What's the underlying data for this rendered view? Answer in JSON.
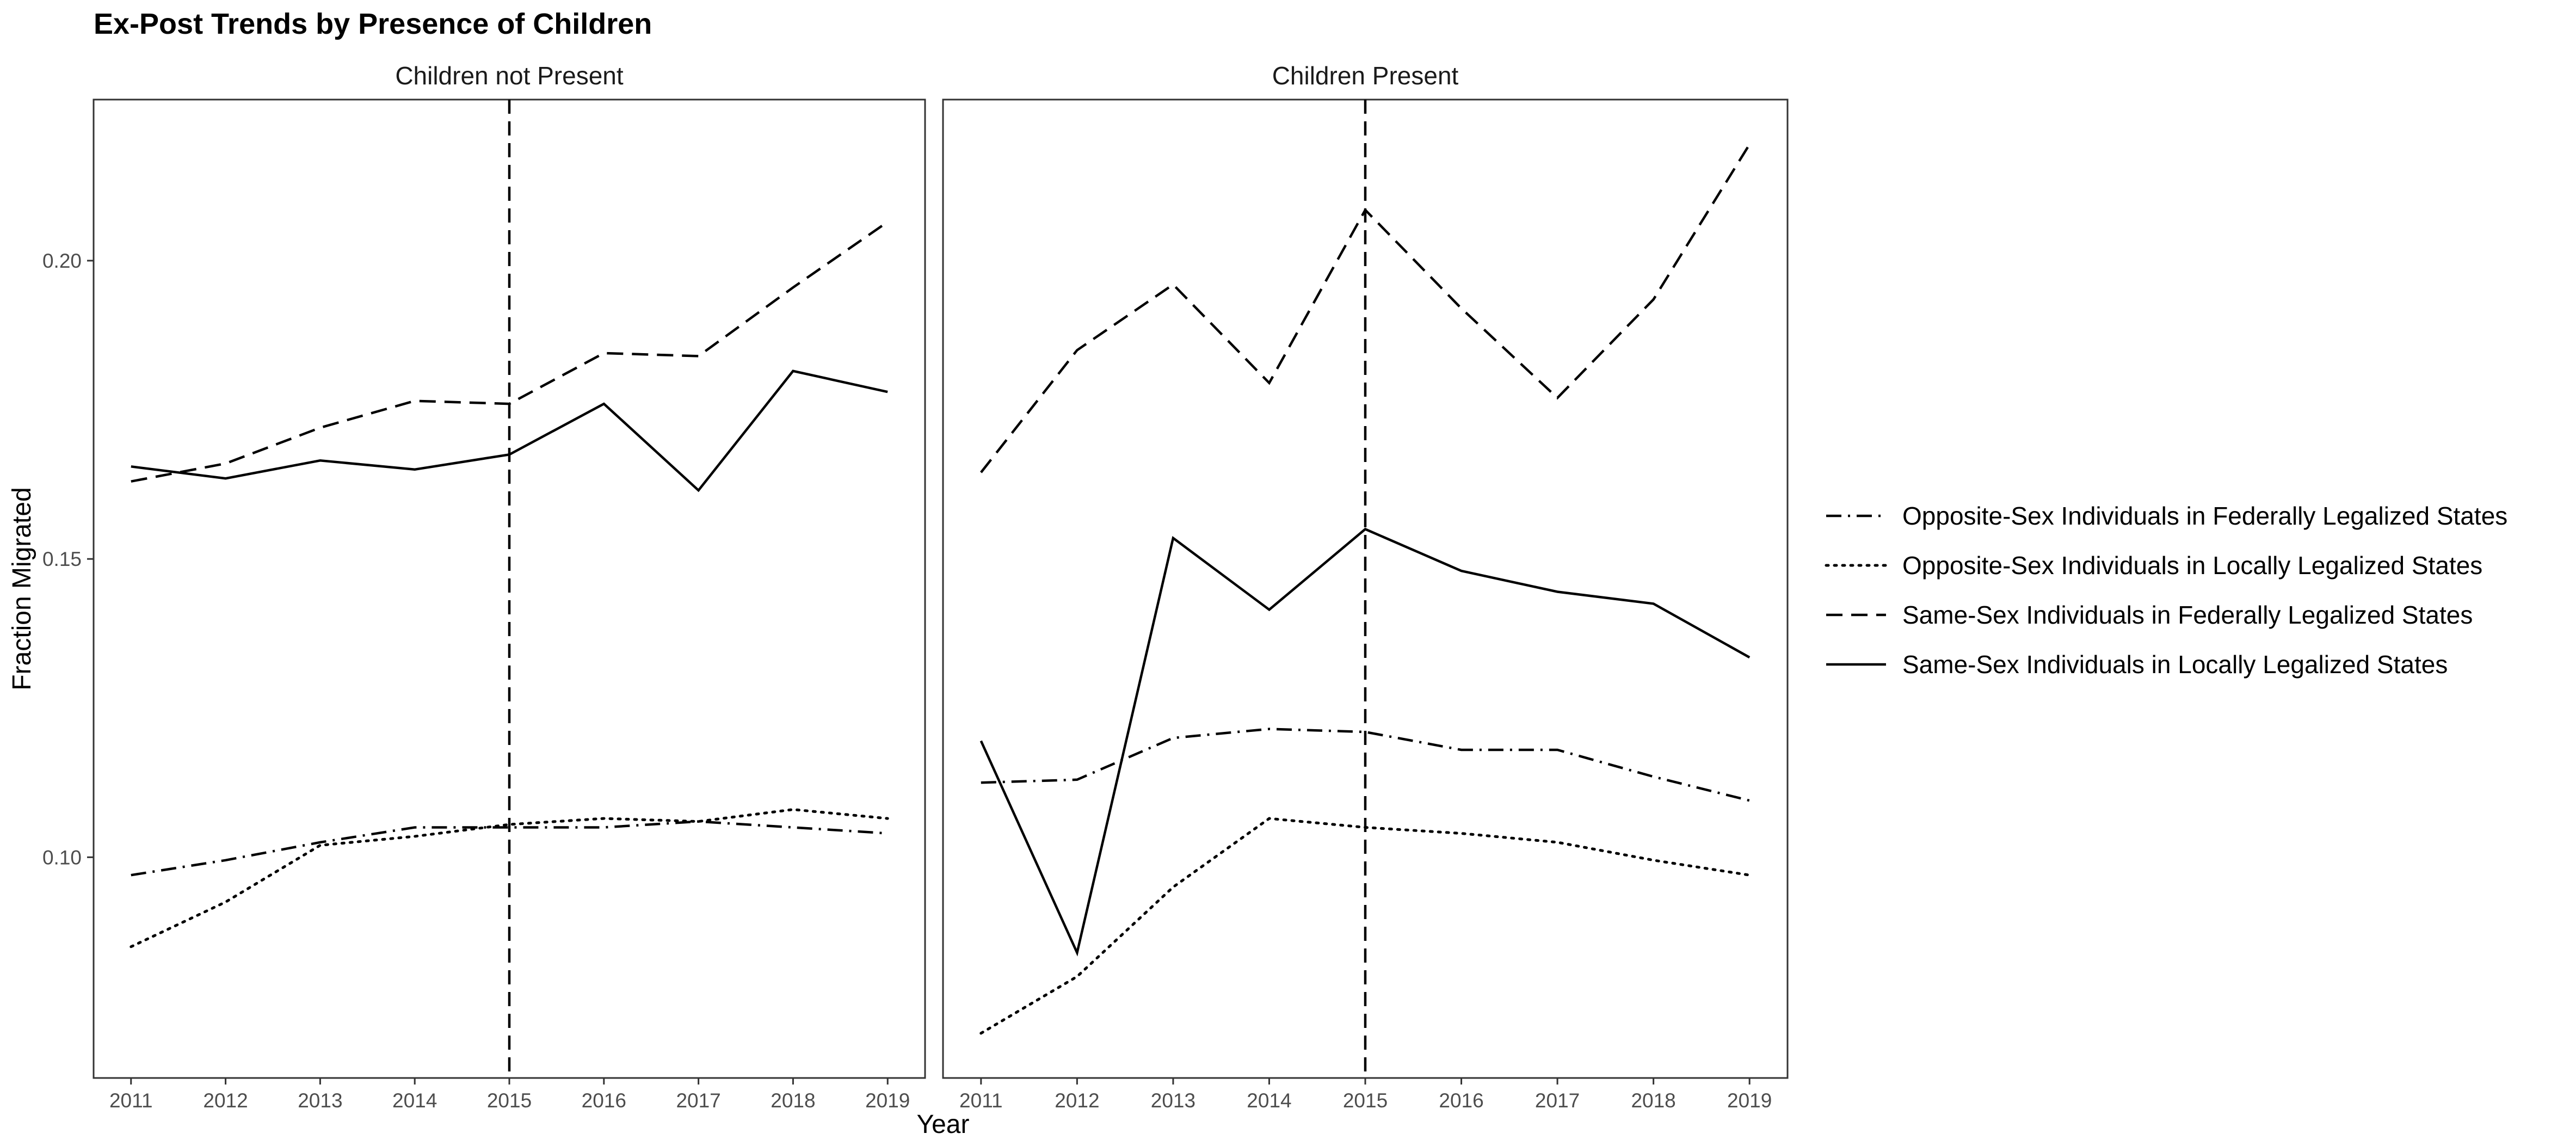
{
  "chart_data": {
    "type": "line",
    "title": "Ex-Post Trends by Presence of Children",
    "xlabel": "Year",
    "ylabel": "Fraction Migrated",
    "x": [
      2011,
      2012,
      2013,
      2014,
      2015,
      2016,
      2017,
      2018,
      2019
    ],
    "ylim": [
      0.063,
      0.227
    ],
    "yticks": [
      0.1,
      0.15,
      0.2
    ],
    "ytick_labels": [
      "0.10",
      "0.15",
      "0.20"
    ],
    "xticks": [
      "2011",
      "2012",
      "2013",
      "2014",
      "2015",
      "2016",
      "2017",
      "2018",
      "2019"
    ],
    "vline_x": 2015,
    "grid": false,
    "legend_position": "right",
    "legend": [
      {
        "name": "Opposite-Sex Individuals in Federally Legalized States",
        "style": "dashdot"
      },
      {
        "name": "Opposite-Sex Individuals in Locally Legalized States",
        "style": "dotted"
      },
      {
        "name": "Same-Sex Individuals in Federally Legalized States",
        "style": "dashed"
      },
      {
        "name": "Same-Sex Individuals in Locally Legalized States",
        "style": "solid"
      }
    ],
    "panels": [
      {
        "title": "Children not Present",
        "series": [
          {
            "name": "Opposite-Sex Individuals in Federally Legalized States",
            "style": "dashdot",
            "values": [
              0.097,
              0.0995,
              0.1025,
              0.105,
              0.105,
              0.105,
              0.106,
              0.105,
              0.104
            ]
          },
          {
            "name": "Opposite-Sex Individuals in Locally Legalized States",
            "style": "dotted",
            "values": [
              0.085,
              0.0925,
              0.102,
              0.1035,
              0.1055,
              0.1065,
              0.106,
              0.108,
              0.1065
            ]
          },
          {
            "name": "Same-Sex Individuals in Federally Legalized States",
            "style": "dashed",
            "values": [
              0.163,
              0.166,
              0.172,
              0.1765,
              0.176,
              0.1845,
              0.184,
              0.1955,
              0.2065
            ]
          },
          {
            "name": "Same-Sex Individuals in Locally Legalized States",
            "style": "solid",
            "values": [
              0.1655,
              0.1635,
              0.1665,
              0.165,
              0.1675,
              0.176,
              0.1615,
              0.1815,
              0.178
            ]
          }
        ]
      },
      {
        "title": "Children Present",
        "series": [
          {
            "name": "Opposite-Sex Individuals in Federally Legalized States",
            "style": "dashdot",
            "values": [
              0.1125,
              0.113,
              0.12,
              0.1215,
              0.121,
              0.118,
              0.118,
              0.1135,
              0.1095
            ]
          },
          {
            "name": "Opposite-Sex Individuals in Locally Legalized States",
            "style": "dotted",
            "values": [
              0.0705,
              0.08,
              0.095,
              0.1065,
              0.105,
              0.104,
              0.1025,
              0.0995,
              0.097
            ]
          },
          {
            "name": "Same-Sex Individuals in Federally Legalized States",
            "style": "dashed",
            "values": [
              0.1645,
              0.185,
              0.196,
              0.1795,
              0.2085,
              0.192,
              0.177,
              0.1935,
              0.2195
            ]
          },
          {
            "name": "Same-Sex Individuals in Locally Legalized States",
            "style": "solid",
            "values": [
              0.1195,
              0.084,
              0.1535,
              0.1415,
              0.155,
              0.148,
              0.1445,
              0.1425,
              0.1335
            ]
          }
        ]
      }
    ]
  }
}
